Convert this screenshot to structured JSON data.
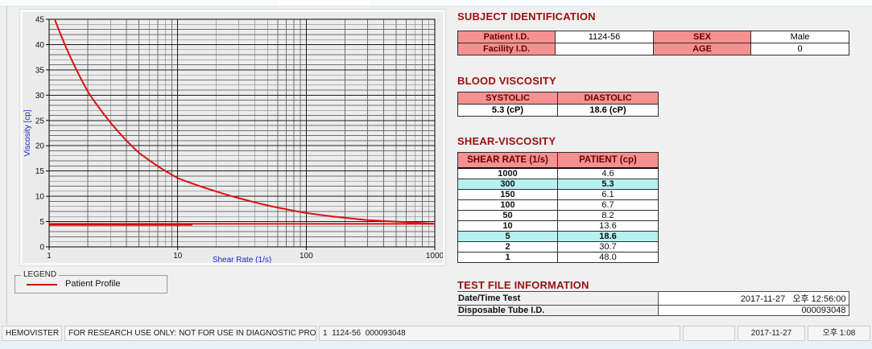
{
  "chart_data": {
    "type": "line",
    "title": "",
    "xlabel": "Shear Rate (1/s)",
    "ylabel": "Viscosity [cp]",
    "x_scale": "log",
    "xlim": [
      1,
      1000
    ],
    "ylim": [
      0,
      45
    ],
    "x_ticks": [
      1,
      10,
      100,
      1000
    ],
    "y_tick_major": 5,
    "y_tick_minor": 1,
    "grid": true,
    "plot_bg": "#ececec",
    "series": [
      {
        "name": "patient-profile",
        "color": "#dd1111",
        "width": 2,
        "x": [
          1,
          2,
          5,
          10,
          50,
          100,
          150,
          300,
          1000
        ],
        "y": [
          48.0,
          30.7,
          18.6,
          13.6,
          8.2,
          6.7,
          6.1,
          5.3,
          4.6
        ]
      },
      {
        "name": "high-shear-trace",
        "color": "#e11212",
        "width": 2,
        "x": [
          1,
          1000
        ],
        "y": [
          4.55,
          4.55
        ]
      },
      {
        "name": "high-shear-trace-start",
        "color": "#c90000",
        "width": 2,
        "x": [
          1,
          13
        ],
        "y": [
          4.35,
          4.35
        ]
      }
    ],
    "legend": {
      "title": "LEGEND",
      "position": "bottom-left",
      "entries": [
        {
          "label": "Patient Profile",
          "color": "#cc0000"
        }
      ]
    }
  },
  "sections": {
    "subject": {
      "title": "SUBJECT IDENTIFICATION",
      "rows": [
        {
          "label1": "Patient I.D.",
          "value1": "1124-56",
          "label2": "SEX",
          "value2": "Male"
        },
        {
          "label1": "Facility I.D.",
          "value1": "",
          "label2": "AGE",
          "value2": "0"
        }
      ]
    },
    "blood": {
      "title": "BLOOD VISCOSITY",
      "headers": [
        "SYSTOLIC",
        "DIASTOLIC"
      ],
      "values": [
        "5.3 (cP)",
        "18.6 (cP)"
      ]
    },
    "shear": {
      "title": "SHEAR-VISCOSITY",
      "headers": [
        "SHEAR RATE (1/s)",
        "PATIENT (cp)"
      ],
      "rows": [
        {
          "rate": "1000",
          "value": "4.6",
          "highlight": false
        },
        {
          "rate": "300",
          "value": "5.3",
          "highlight": true
        },
        {
          "rate": "150",
          "value": "6.1",
          "highlight": false
        },
        {
          "rate": "100",
          "value": "6.7",
          "highlight": false
        },
        {
          "rate": "50",
          "value": "8.2",
          "highlight": false
        },
        {
          "rate": "10",
          "value": "13.6",
          "highlight": false
        },
        {
          "rate": "5",
          "value": "18.6",
          "highlight": true
        },
        {
          "rate": "2",
          "value": "30.7",
          "highlight": false
        },
        {
          "rate": "1",
          "value": "48.0",
          "highlight": false
        }
      ]
    },
    "testfile": {
      "title": "TEST FILE INFORMATION",
      "rows": [
        {
          "label": "Date/Time Test",
          "value": "2017-11-27   오후 12:56:00"
        },
        {
          "label": "Disposable Tube I.D.",
          "value": "000093048"
        }
      ]
    }
  },
  "statusbar": {
    "app_name": "HEMOVISTER",
    "notice": "FOR RESEARCH USE ONLY: NOT FOR USE IN DIAGNOSTIC PROCEDURES",
    "record_info": "1  1124-56  000093048",
    "date": "2017-11-27",
    "time": "오후 1:08"
  },
  "colors": {
    "section_title": "#9b0e0e",
    "table_header_bg": "#f59191",
    "table_header_text": "#6d0000",
    "highlight_row_bg": "#b5f1f1",
    "curve_red": "#dd1111",
    "axis_label_blue": "#2222cc"
  }
}
